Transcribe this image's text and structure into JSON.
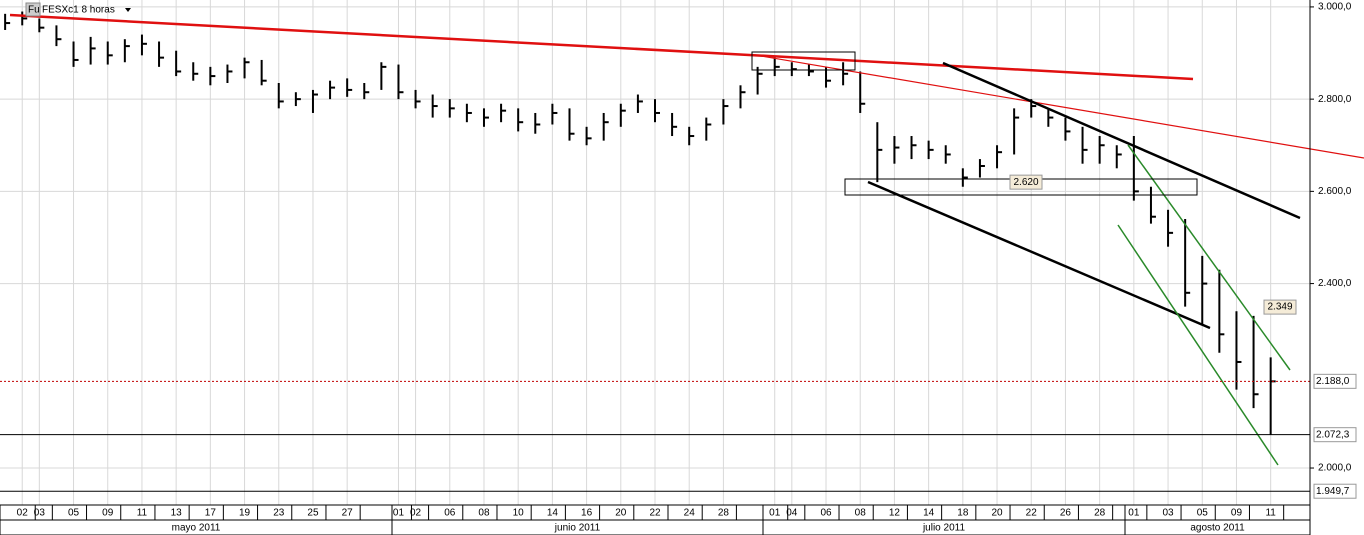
{
  "chart_data": {
    "type": "ohlc",
    "title": "FESXc1 8 horas",
    "symbol_badge": "Fu",
    "xlim": [
      -0.3,
      76.3
    ],
    "ylim": [
      1948,
      3015
    ],
    "grid": true,
    "xticks": [
      {
        "value": 1,
        "label": "02"
      },
      {
        "value": 2,
        "label": "03"
      },
      {
        "value": 4,
        "label": "05"
      },
      {
        "value": 6,
        "label": "09"
      },
      {
        "value": 8,
        "label": "11"
      },
      {
        "value": 10,
        "label": "13"
      },
      {
        "value": 12,
        "label": "17"
      },
      {
        "value": 14,
        "label": "19"
      },
      {
        "value": 16,
        "label": "23"
      },
      {
        "value": 18,
        "label": "25"
      },
      {
        "value": 20,
        "label": "27"
      },
      {
        "value": 23,
        "label": "01"
      },
      {
        "value": 24,
        "label": "02"
      },
      {
        "value": 26,
        "label": "06"
      },
      {
        "value": 28,
        "label": "08"
      },
      {
        "value": 30,
        "label": "10"
      },
      {
        "value": 32,
        "label": "14"
      },
      {
        "value": 34,
        "label": "16"
      },
      {
        "value": 36,
        "label": "20"
      },
      {
        "value": 38,
        "label": "22"
      },
      {
        "value": 40,
        "label": "24"
      },
      {
        "value": 42,
        "label": "28"
      },
      {
        "value": 45,
        "label": "01"
      },
      {
        "value": 46,
        "label": "04"
      },
      {
        "value": 48,
        "label": "06"
      },
      {
        "value": 50,
        "label": "08"
      },
      {
        "value": 52,
        "label": "12"
      },
      {
        "value": 54,
        "label": "14"
      },
      {
        "value": 56,
        "label": "18"
      },
      {
        "value": 58,
        "label": "20"
      },
      {
        "value": 60,
        "label": "22"
      },
      {
        "value": 62,
        "label": "26"
      },
      {
        "value": 64,
        "label": "28"
      },
      {
        "value": 66,
        "label": "01"
      },
      {
        "value": 68,
        "label": "03"
      },
      {
        "value": 70,
        "label": "05"
      },
      {
        "value": 72,
        "label": "09"
      },
      {
        "value": 74,
        "label": "11"
      }
    ],
    "months": [
      "mayo 2011",
      "junio 2011",
      "julio 2011",
      "agosto 2011"
    ],
    "yticks": [
      {
        "value": 3000,
        "label": "3.000,0"
      },
      {
        "value": 2800,
        "label": "2.800,0"
      },
      {
        "value": 2600,
        "label": "2.600,0"
      },
      {
        "value": 2400,
        "label": "2.400,0"
      },
      {
        "value": 2000,
        "label": "2.000,0"
      }
    ],
    "series": [
      {
        "color": "#000000",
        "high": [
          2985,
          2990,
          2975,
          2960,
          2925,
          2935,
          2925,
          2930,
          2940,
          2925,
          2905,
          2880,
          2870,
          2875,
          2890,
          2885,
          2835,
          2815,
          2820,
          2840,
          2845,
          2835,
          2880,
          2875,
          2820,
          2810,
          2800,
          2790,
          2780,
          2790,
          2780,
          2770,
          2790,
          2780,
          2740,
          2770,
          2790,
          2810,
          2800,
          2770,
          2740,
          2760,
          2800,
          2830,
          2870,
          2890,
          2880,
          2875,
          2870,
          2880,
          2860,
          2750,
          2720,
          2720,
          2710,
          2700,
          2650,
          2670,
          2700,
          2780,
          2800,
          2780,
          2760,
          2740,
          2720,
          2700,
          2720,
          2610,
          2560,
          2540,
          2460,
          2430,
          2340,
          2330,
          2240
        ],
        "low": [
          2950,
          2960,
          2945,
          2915,
          2870,
          2875,
          2875,
          2880,
          2895,
          2870,
          2850,
          2840,
          2830,
          2835,
          2845,
          2830,
          2780,
          2785,
          2770,
          2800,
          2805,
          2800,
          2820,
          2800,
          2780,
          2760,
          2760,
          2750,
          2740,
          2750,
          2730,
          2725,
          2745,
          2710,
          2700,
          2710,
          2740,
          2770,
          2750,
          2720,
          2700,
          2710,
          2745,
          2780,
          2810,
          2850,
          2850,
          2850,
          2825,
          2830,
          2770,
          2620,
          2660,
          2670,
          2670,
          2660,
          2610,
          2630,
          2650,
          2680,
          2760,
          2740,
          2710,
          2660,
          2660,
          2650,
          2580,
          2530,
          2480,
          2350,
          2310,
          2250,
          2170,
          2130,
          2072
        ],
        "close": [
          2965,
          2975,
          2955,
          2930,
          2885,
          2910,
          2895,
          2915,
          2920,
          2890,
          2860,
          2855,
          2850,
          2860,
          2880,
          2840,
          2795,
          2800,
          2810,
          2825,
          2820,
          2815,
          2870,
          2815,
          2795,
          2785,
          2780,
          2770,
          2760,
          2775,
          2750,
          2745,
          2770,
          2725,
          2715,
          2750,
          2775,
          2795,
          2770,
          2740,
          2720,
          2745,
          2785,
          2815,
          2855,
          2870,
          2865,
          2860,
          2840,
          2855,
          2790,
          2690,
          2695,
          2700,
          2690,
          2680,
          2630,
          2655,
          2685,
          2760,
          2785,
          2760,
          2730,
          2690,
          2700,
          2680,
          2600,
          2545,
          2510,
          2380,
          2400,
          2290,
          2230,
          2160,
          2188
        ]
      }
    ],
    "price_markers": [
      {
        "value": 2188,
        "label": "2.188,0",
        "color": "#2a8a2a"
      },
      {
        "value": 2072.3,
        "label": "2.072,3",
        "color": "#c00000"
      },
      {
        "value": 1949.7,
        "label": "1.949,7",
        "color": "#c00000"
      }
    ],
    "annotations": [
      {
        "value": 2620,
        "label": "2.620"
      },
      {
        "value": 2349,
        "label": "2.349"
      }
    ]
  }
}
